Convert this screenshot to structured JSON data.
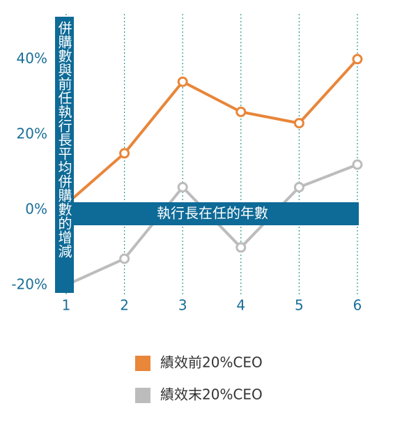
{
  "chart_data": {
    "type": "line",
    "y_label": "併購數與前任執行長平均併購數的增減",
    "x_label": "執行長在任的年數",
    "x": [
      1,
      2,
      3,
      4,
      5,
      6
    ],
    "xlim": [
      1,
      6
    ],
    "xticks": [
      1,
      2,
      3,
      4,
      5,
      6
    ],
    "ylim": [
      -23,
      52
    ],
    "yticks": [
      {
        "value": -20,
        "label": "-20%"
      },
      {
        "value": 0,
        "label": "0%"
      },
      {
        "value": 20,
        "label": "20%"
      },
      {
        "value": 40,
        "label": "40%"
      }
    ],
    "grid": true,
    "series": [
      {
        "name": "績效前20%CEO",
        "color": "#e8863a",
        "values": [
          1.5,
          15,
          34,
          26,
          23,
          40
        ]
      },
      {
        "name": "績效末20%CEO",
        "color": "#bcbcbc",
        "values": [
          -20,
          -13,
          6,
          -10,
          6,
          12
        ]
      }
    ]
  }
}
